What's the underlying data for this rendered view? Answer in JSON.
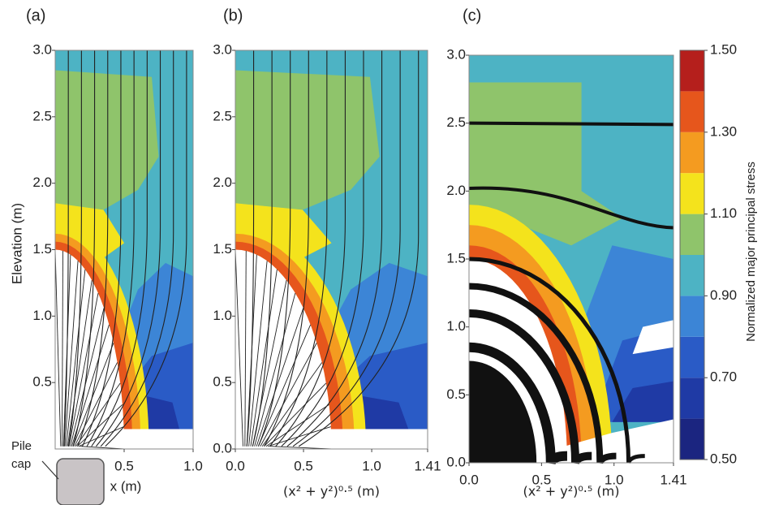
{
  "chart_data": [
    {
      "type": "contour",
      "title": "(a)",
      "ylabel": "Elevation (m)",
      "xlabel": "x (m)",
      "annotation": [
        "Pile",
        "cap"
      ],
      "xlim": [
        0,
        1
      ],
      "xticks": [
        0.5,
        {
          "value": 1,
          "label": "1.0"
        }
      ],
      "ylim": [
        0,
        3
      ],
      "yticks": [
        0.5,
        {
          "value": 1,
          "label": "1.0"
        },
        1.5,
        {
          "value": 2,
          "label": "2.0"
        },
        2.5,
        {
          "value": 3,
          "label": "3.0"
        }
      ]
    },
    {
      "type": "contour",
      "title": "(b)",
      "xlabel": "(x² + y²)⁰·⁵ (m)",
      "xlim": [
        0,
        1.41
      ],
      "xticks": [
        {
          "value": 0,
          "label": "0.0"
        },
        0.5,
        {
          "value": 1,
          "label": "1.0"
        },
        1.41
      ],
      "ylim": [
        0,
        3
      ],
      "yticks": [
        {
          "value": 0,
          "label": "0.0"
        },
        0.5,
        {
          "value": 1,
          "label": "1.0"
        },
        1.5,
        {
          "value": 2,
          "label": "2.0"
        },
        2.5,
        {
          "value": 3,
          "label": "3.0"
        }
      ]
    },
    {
      "type": "contour",
      "title": "(c)",
      "xlabel": "(x² + y²)⁰·⁵ (m)",
      "xlim": [
        0,
        1.41
      ],
      "xticks": [
        {
          "value": 0,
          "label": "0.0"
        },
        0.5,
        {
          "value": 1,
          "label": "1.0"
        },
        1.41
      ],
      "ylim": [
        0,
        3
      ],
      "yticks": [
        {
          "value": 0,
          "label": "0.0"
        },
        0.5,
        {
          "value": 1,
          "label": "1.0"
        },
        1.5,
        {
          "value": 2,
          "label": "2.0"
        },
        2.5,
        {
          "value": 3,
          "label": "3.0"
        }
      ],
      "colorbar": {
        "label": "Normalized major principal stress",
        "levels": [
          0.5,
          0.6,
          0.7,
          0.8,
          0.9,
          1.0,
          1.1,
          1.2,
          1.3,
          1.4,
          1.5
        ],
        "colors": [
          "#1b2580",
          "#1f3aa5",
          "#2a5bc6",
          "#3c85d6",
          "#4db3c4",
          "#8fc46b",
          "#f4e31c",
          "#f49b20",
          "#e6561c",
          "#b51f1c"
        ],
        "ticks": [
          {
            "value": 0.5,
            "label": "0.50"
          },
          {
            "value": 0.7,
            "label": "0.70"
          },
          {
            "value": 0.9,
            "label": "0.90"
          },
          {
            "value": 1.1,
            "label": "1.10"
          },
          {
            "value": 1.3,
            "label": "1.30"
          },
          {
            "value": 1.5,
            "label": "1.50"
          }
        ]
      }
    }
  ]
}
